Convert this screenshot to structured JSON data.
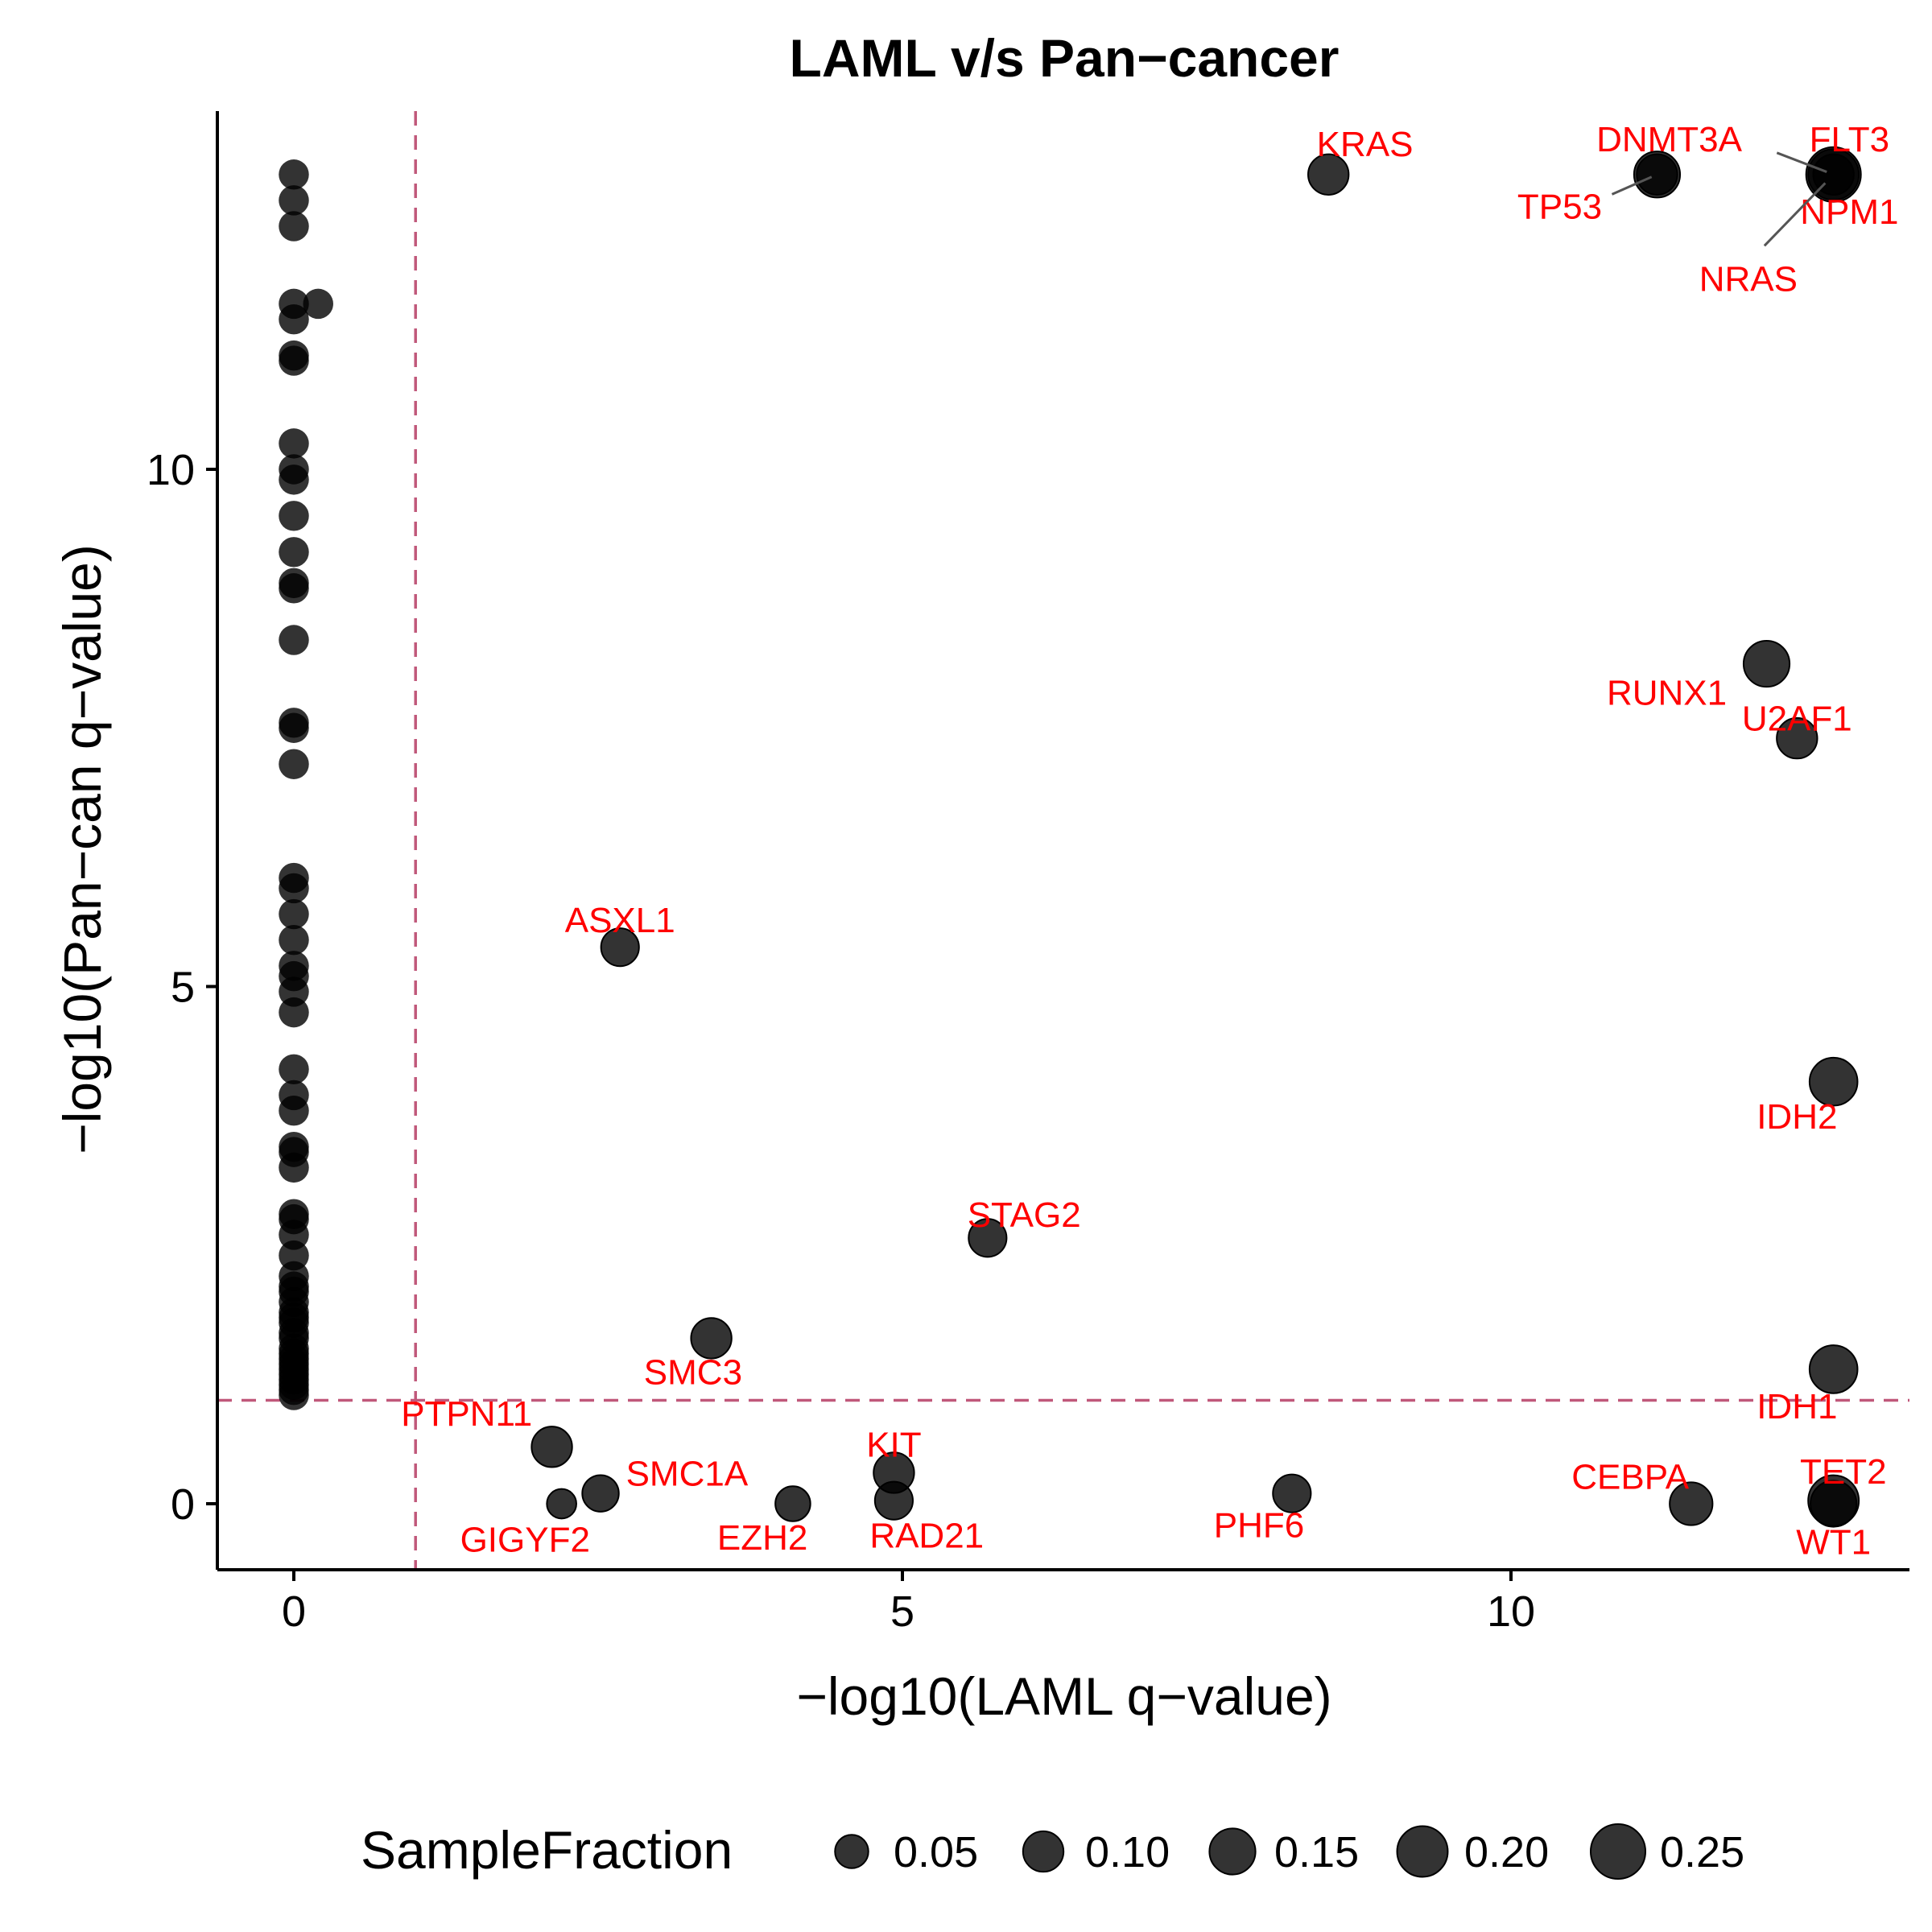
{
  "chart_data": {
    "type": "scatter",
    "title": "LAML v/s Pan−cancer",
    "xlabel": "−log10(LAML q−value)",
    "ylabel": "−log10(Pan−can q−value)",
    "xlim": [
      -0.6,
      13.3
    ],
    "ylim": [
      -0.65,
      13.4
    ],
    "x_ticks": [
      0,
      5,
      10
    ],
    "y_ticks": [
      0,
      5,
      10
    ],
    "threshold_lines": {
      "x": 1,
      "y": 1
    },
    "threshold_color": "#c0587a",
    "point_color": "#000000",
    "label_color": "#ff0000",
    "grid": false,
    "legend": {
      "title": "SampleFraction",
      "position": "bottom",
      "entries": [
        {
          "label": "0.05",
          "value": 0.05
        },
        {
          "label": "0.10",
          "value": 0.1
        },
        {
          "label": "0.15",
          "value": 0.15
        },
        {
          "label": "0.20",
          "value": 0.2
        },
        {
          "label": "0.25",
          "value": 0.25
        }
      ]
    },
    "labeled_points": [
      {
        "gene": "KRAS",
        "x": 8.5,
        "y": 12.85,
        "size": 0.1,
        "label_x": 8.8,
        "label_y": 13.15,
        "leader": false
      },
      {
        "gene": "DNMT3A",
        "x": 11.2,
        "y": 12.85,
        "size": 0.15,
        "label_x": 11.3,
        "label_y": 13.2,
        "leader": false
      },
      {
        "gene": "FLT3",
        "x": 12.65,
        "y": 12.85,
        "size": 0.25,
        "label_x": 12.78,
        "label_y": 13.2,
        "leader": true
      },
      {
        "gene": "TP53",
        "x": 11.2,
        "y": 12.85,
        "size": 0.1,
        "label_x": 10.4,
        "label_y": 12.55,
        "leader": true
      },
      {
        "gene": "NPM1",
        "x": 12.65,
        "y": 12.85,
        "size": 0.2,
        "label_x": 12.78,
        "label_y": 12.5,
        "leader": false
      },
      {
        "gene": "NRAS",
        "x": 12.65,
        "y": 12.85,
        "size": 0.1,
        "label_x": 11.95,
        "label_y": 11.85,
        "leader": true
      },
      {
        "gene": "RUNX1",
        "x": 12.1,
        "y": 8.12,
        "size": 0.15,
        "label_x": 11.28,
        "label_y": 7.85,
        "leader": false
      },
      {
        "gene": "U2AF1",
        "x": 12.35,
        "y": 7.4,
        "size": 0.1,
        "label_x": 12.35,
        "label_y": 7.6,
        "leader": false
      },
      {
        "gene": "ASXL1",
        "x": 2.68,
        "y": 5.38,
        "size": 0.08,
        "label_x": 2.68,
        "label_y": 5.65,
        "leader": false
      },
      {
        "gene": "IDH2",
        "x": 12.65,
        "y": 4.08,
        "size": 0.17,
        "label_x": 12.35,
        "label_y": 3.75,
        "leader": false
      },
      {
        "gene": "STAG2",
        "x": 5.7,
        "y": 2.57,
        "size": 0.08,
        "label_x": 6.0,
        "label_y": 2.8,
        "leader": false
      },
      {
        "gene": "SMC3",
        "x": 3.43,
        "y": 1.6,
        "size": 0.1,
        "label_x": 3.28,
        "label_y": 1.28,
        "leader": false
      },
      {
        "gene": "IDH1",
        "x": 12.65,
        "y": 1.3,
        "size": 0.17,
        "label_x": 12.35,
        "label_y": 0.95,
        "leader": false
      },
      {
        "gene": "PTPN11",
        "x": 2.12,
        "y": 0.55,
        "size": 0.1,
        "label_x": 1.42,
        "label_y": 0.88,
        "leader": false
      },
      {
        "gene": "KIT",
        "x": 4.93,
        "y": 0.3,
        "size": 0.1,
        "label_x": 4.93,
        "label_y": 0.58,
        "leader": false
      },
      {
        "gene": "SMC1A",
        "x": 2.52,
        "y": 0.1,
        "size": 0.07,
        "label_x": 3.23,
        "label_y": 0.3,
        "leader": false
      },
      {
        "gene": "TET2",
        "x": 12.65,
        "y": 0.03,
        "size": 0.2,
        "label_x": 12.73,
        "label_y": 0.32,
        "leader": false
      },
      {
        "gene": "CEBPA",
        "x": 11.48,
        "y": 0.0,
        "size": 0.12,
        "label_x": 10.98,
        "label_y": 0.27,
        "leader": false
      },
      {
        "gene": "PHF6",
        "x": 8.2,
        "y": 0.1,
        "size": 0.08,
        "label_x": 7.93,
        "label_y": -0.2,
        "leader": false
      },
      {
        "gene": "EZH2",
        "x": 4.1,
        "y": 0.0,
        "size": 0.06,
        "label_x": 3.85,
        "label_y": -0.32,
        "leader": false
      },
      {
        "gene": "RAD21",
        "x": 4.93,
        "y": 0.03,
        "size": 0.08,
        "label_x": 5.2,
        "label_y": -0.3,
        "leader": false
      },
      {
        "gene": "GIGYF2",
        "x": 2.2,
        "y": 0.0,
        "size": 0.03,
        "label_x": 1.9,
        "label_y": -0.34,
        "leader": false
      },
      {
        "gene": "WT1",
        "x": 12.65,
        "y": 0.0,
        "size": 0.15,
        "label_x": 12.65,
        "label_y": -0.36,
        "leader": false
      }
    ],
    "unlabeled_points": {
      "x": 0,
      "size": 0.05,
      "y": [
        12.85,
        12.6,
        12.35,
        11.6,
        11.45,
        11.1,
        11.05,
        10.25,
        10.0,
        9.9,
        9.55,
        9.2,
        8.9,
        8.85,
        8.35,
        7.55,
        7.5,
        7.15,
        6.05,
        5.95,
        5.7,
        5.45,
        5.2,
        5.1,
        4.95,
        4.75,
        4.2,
        3.95,
        3.8,
        3.45,
        3.4,
        3.25,
        2.8,
        2.75,
        2.6,
        2.4,
        2.2,
        2.1,
        2.05,
        1.95,
        1.85,
        1.8,
        1.75,
        1.65,
        1.6,
        1.5,
        1.45,
        1.4,
        1.35,
        1.3,
        1.25,
        1.2,
        1.15,
        1.1,
        1.05
      ],
      "extra": [
        {
          "x": 0.2,
          "y": 11.6
        }
      ]
    }
  }
}
